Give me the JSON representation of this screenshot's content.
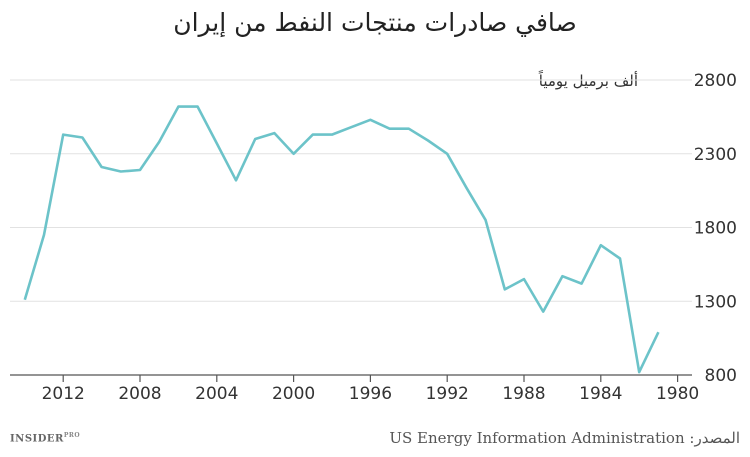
{
  "chart_data": {
    "type": "line",
    "title": "صافي صادرات منتجات النفط من إيران",
    "unit_label": "ألف برميل يومياً",
    "x": [
      2014,
      2013,
      2012,
      2011,
      2010,
      2009,
      2008,
      2007,
      2006,
      2005,
      2004,
      2003,
      2002,
      2001,
      2000,
      1999,
      1998,
      1997,
      1996,
      1995,
      1994,
      1993,
      1992,
      1991,
      1990,
      1989,
      1988,
      1987,
      1986,
      1985,
      1984,
      1983,
      1982,
      1981,
      1980
    ],
    "values": [
      1310,
      1750,
      2430,
      2410,
      2210,
      2180,
      2190,
      2380,
      2620,
      2620,
      2370,
      2120,
      2400,
      2440,
      2300,
      2430,
      2430,
      2480,
      2530,
      2470,
      2470,
      2390,
      2300,
      2070,
      1850,
      1380,
      1450,
      1230,
      1470,
      1420,
      1680,
      1590,
      820,
      1090,
      null
    ],
    "x_ticks": [
      "2012",
      "2008",
      "2004",
      "2000",
      "1996",
      "1992",
      "1988",
      "1984",
      "1980"
    ],
    "y_ticks": [
      "800",
      "1300",
      "1800",
      "2300",
      "2800"
    ],
    "ylim": [
      800,
      2800
    ],
    "line_color": "#6cc3c9",
    "grid": true
  },
  "footer": {
    "logo": "INSIDER",
    "logo_sup": "PRO",
    "source": "US Energy Information Administration :المصدر"
  }
}
